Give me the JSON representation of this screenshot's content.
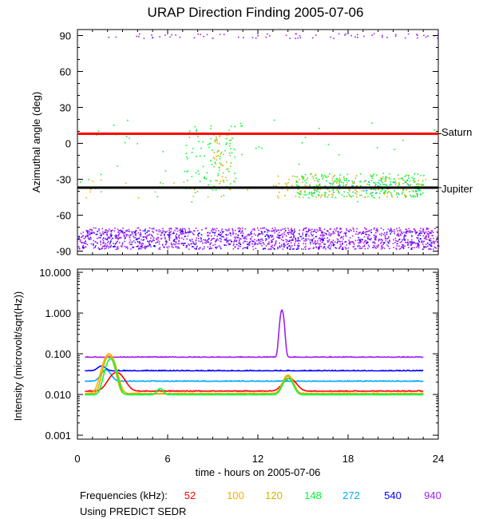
{
  "chart_data": {
    "title": "URAP Direction Finding  2005-07-06",
    "xlabel": "time - hours on 2005-07-06",
    "xlim": [
      0,
      24
    ],
    "x_ticks": [
      "0",
      "6",
      "12",
      "18",
      "24"
    ],
    "panels": [
      {
        "type": "scatter",
        "ylabel": "Azimuthal angle (deg)",
        "ylim": [
          -93,
          95
        ],
        "y_ticks": [
          "90",
          "60",
          "30",
          "0",
          "-30",
          "-60",
          "-90"
        ],
        "y_tick_values": [
          90,
          60,
          30,
          0,
          -30,
          -60,
          -90
        ],
        "reference_lines": [
          {
            "name": "Saturn",
            "value": 8,
            "color": "#ff0000"
          },
          {
            "name": "Jupiter",
            "value": -37,
            "color": "#000000"
          }
        ],
        "clusters": [
          {
            "series": "940",
            "x_range": [
              0,
              24
            ],
            "y_range": [
              -88,
              -70
            ],
            "count": 1400
          },
          {
            "series": "540",
            "x_range": [
              0,
              24
            ],
            "y_range": [
              -88,
              -72
            ],
            "count": 260
          },
          {
            "series": "940",
            "x_range": [
              2,
              24
            ],
            "y_range": [
              88,
              92
            ],
            "count": 70
          },
          {
            "series": "148",
            "x_range": [
              7,
              10.5
            ],
            "y_range": [
              -40,
              15
            ],
            "count": 90
          },
          {
            "series": "120",
            "x_range": [
              9,
              10.2
            ],
            "y_range": [
              -40,
              10
            ],
            "count": 50
          },
          {
            "series": "148",
            "x_range": [
              14.5,
              23
            ],
            "y_range": [
              -45,
              -25
            ],
            "count": 260
          },
          {
            "series": "120",
            "x_range": [
              13,
              23
            ],
            "y_range": [
              -45,
              -25
            ],
            "count": 130
          },
          {
            "series": "272",
            "x_range": [
              15,
              23
            ],
            "y_range": [
              -42,
              -30
            ],
            "count": 40
          },
          {
            "series": "100",
            "x_range": [
              0,
              24
            ],
            "y_range": [
              -45,
              -28
            ],
            "count": 40
          },
          {
            "series": "148",
            "x_range": [
              0,
              24
            ],
            "y_range": [
              -50,
              20
            ],
            "count": 50
          }
        ]
      },
      {
        "type": "line",
        "ylabel": "Intensity (microvolt/sqrt(Hz))",
        "yscale": "log",
        "ylim": [
          0.0008,
          12
        ],
        "y_ticks": [
          "10.000",
          "1.000",
          "0.100",
          "0.010",
          "0.001"
        ],
        "y_tick_values": [
          10,
          1,
          0.1,
          0.01,
          0.001
        ],
        "series": [
          {
            "name": "940",
            "baseline": 0.082,
            "peaks": [
              {
                "x": 13.6,
                "height": 1.2,
                "width": 0.12
              }
            ]
          },
          {
            "name": "540",
            "baseline": 0.038,
            "peaks": [
              {
                "x": 1.6,
                "height": 0.05,
                "width": 0.25
              }
            ]
          },
          {
            "name": "272",
            "baseline": 0.021,
            "peaks": [
              {
                "x": 1.9,
                "height": 0.04,
                "width": 0.3
              }
            ]
          },
          {
            "name": "52",
            "baseline": 0.012,
            "peaks": [
              {
                "x": 2.6,
                "height": 0.035,
                "width": 0.45
              },
              {
                "x": 14.1,
                "height": 0.025,
                "width": 0.4
              }
            ]
          },
          {
            "name": "100",
            "baseline": 0.0105,
            "peaks": [
              {
                "x": 2.1,
                "height": 0.1,
                "width": 0.35
              },
              {
                "x": 14.0,
                "height": 0.03,
                "width": 0.3
              }
            ]
          },
          {
            "name": "120",
            "baseline": 0.0102,
            "peaks": [
              {
                "x": 2.1,
                "height": 0.09,
                "width": 0.3
              },
              {
                "x": 14.0,
                "height": 0.028,
                "width": 0.3
              }
            ]
          },
          {
            "name": "148",
            "baseline": 0.0098,
            "peaks": [
              {
                "x": 2.2,
                "height": 0.075,
                "width": 0.3
              },
              {
                "x": 5.5,
                "height": 0.014,
                "width": 0.2
              },
              {
                "x": 14.0,
                "height": 0.025,
                "width": 0.3
              }
            ]
          }
        ]
      }
    ],
    "legend": {
      "label": "Frequencies (kHz):",
      "entries": [
        {
          "name": "52",
          "color": "#ff0000"
        },
        {
          "name": "100",
          "color": "#ffaa00"
        },
        {
          "name": "120",
          "color": "#d4b000"
        },
        {
          "name": "148",
          "color": "#00ff33"
        },
        {
          "name": "272",
          "color": "#00aaff"
        },
        {
          "name": "540",
          "color": "#0000ff"
        },
        {
          "name": "940",
          "color": "#a020f0"
        }
      ]
    },
    "footnote": "Using PREDICT SEDR"
  }
}
